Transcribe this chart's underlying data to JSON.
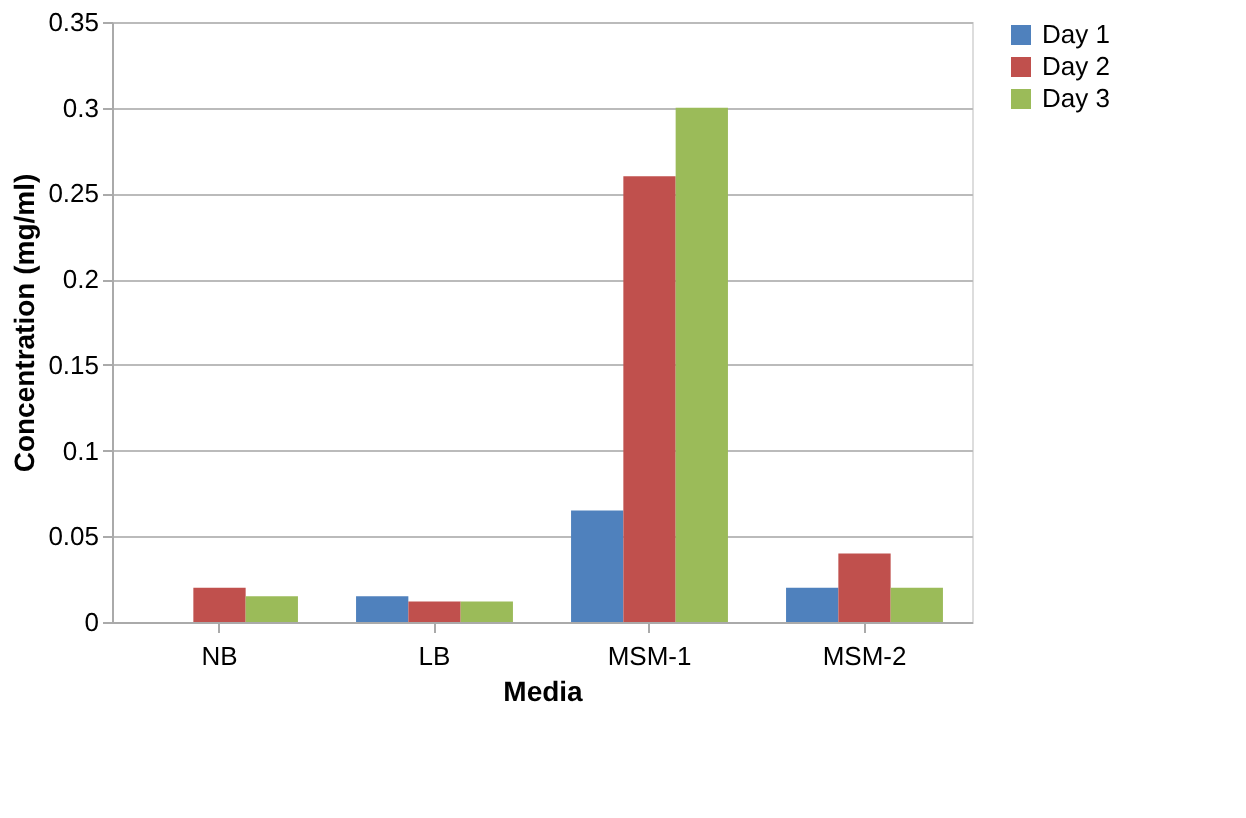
{
  "chart_data": {
    "type": "bar",
    "xlabel": "Media",
    "ylabel": "Concentration (mg/ml)",
    "categories": [
      "NB",
      "LB",
      "MSM-1",
      "MSM-2"
    ],
    "series": [
      {
        "name": "Day 1",
        "color": "#4f81bd",
        "values": [
          0,
          0.015,
          0.065,
          0.02
        ]
      },
      {
        "name": "Day 2",
        "color": "#c0504d",
        "values": [
          0.02,
          0.012,
          0.26,
          0.04
        ]
      },
      {
        "name": "Day 3",
        "color": "#9bbb59",
        "values": [
          0.015,
          0.012,
          0.3,
          0.02
        ]
      }
    ],
    "ylim": [
      0,
      0.35
    ],
    "yticks": [
      0,
      0.05,
      0.1,
      0.15,
      0.2,
      0.25,
      0.3,
      0.35
    ],
    "grid": "y",
    "legend": "right"
  }
}
